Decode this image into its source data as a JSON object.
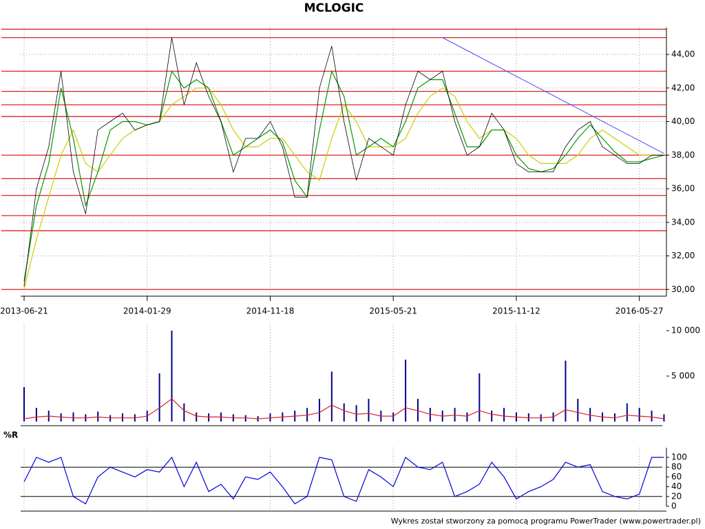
{
  "chart_data": [
    {
      "type": "line",
      "title": "MCLOGIC",
      "x": [
        0,
        1,
        2,
        3,
        4,
        5,
        6,
        7,
        8,
        9,
        10,
        11,
        12,
        13,
        14,
        15,
        16,
        17,
        18,
        19,
        20,
        21,
        22,
        23,
        24,
        25,
        26,
        27,
        28,
        29,
        30,
        31,
        32,
        33,
        34,
        35,
        36,
        37,
        38,
        39,
        40,
        41,
        42,
        43,
        44,
        45,
        46,
        47,
        48,
        49,
        50,
        51,
        52
      ],
      "xlim": [
        -0.28,
        52.2
      ],
      "xticks": [
        {
          "value": 0,
          "label": "2013-06-21"
        },
        {
          "value": 10,
          "label": "2014-01-29"
        },
        {
          "value": 20,
          "label": "2014-11-18"
        },
        {
          "value": 30,
          "label": "2015-05-21"
        },
        {
          "value": 40,
          "label": "2015-11-12"
        },
        {
          "value": 50,
          "label": "2016-05-27"
        }
      ],
      "ylim": [
        29.6,
        45.6
      ],
      "yticks": [
        {
          "value": 30,
          "label": "30,00"
        },
        {
          "value": 32,
          "label": "32,00"
        },
        {
          "value": 34,
          "label": "34,00"
        },
        {
          "value": 36,
          "label": "36,00"
        },
        {
          "value": 38,
          "label": "38,00"
        },
        {
          "value": 40,
          "label": "40,00"
        },
        {
          "value": 42,
          "label": "42,00"
        },
        {
          "value": 44,
          "label": "44,00"
        }
      ],
      "grid": true,
      "series": [
        {
          "color": "#000000",
          "values": [
            30.2,
            36,
            38.5,
            43,
            37,
            34.5,
            39.5,
            40,
            40.5,
            39.5,
            39.8,
            40,
            45,
            41,
            43.5,
            41.5,
            40,
            37,
            39,
            39,
            40,
            38.5,
            35.5,
            35.5,
            42,
            44.5,
            40,
            36.5,
            39,
            38.5,
            38,
            41,
            43,
            42.5,
            43,
            40,
            38,
            38.5,
            40.5,
            39.5,
            37.5,
            37,
            37,
            37,
            38.5,
            39.5,
            40,
            38.5,
            38,
            37.5,
            37.5,
            38,
            38
          ]
        },
        {
          "color": "#009900",
          "values": [
            30.5,
            35,
            37.5,
            42,
            39,
            35,
            37,
            39.5,
            40,
            40,
            39.8,
            40,
            43,
            42,
            42.5,
            42,
            40,
            38,
            38.5,
            39,
            39.5,
            38.8,
            36.5,
            35.5,
            39.5,
            43,
            41.5,
            38,
            38.5,
            39,
            38.5,
            40,
            42,
            42.5,
            42.5,
            40.5,
            38.5,
            38.5,
            39.5,
            39.5,
            38,
            37.2,
            37,
            37.2,
            38,
            39,
            39.8,
            39,
            38.2,
            37.6,
            37.6,
            37.8,
            38
          ]
        },
        {
          "color": "#cccc00",
          "values": [
            30,
            33,
            35.5,
            38,
            39.5,
            37.5,
            37,
            38,
            39,
            39.5,
            39.8,
            40,
            41,
            41.5,
            42,
            42,
            41,
            39.5,
            38.5,
            38.5,
            39,
            39,
            38,
            37,
            36.5,
            39,
            41,
            40,
            38.5,
            38.5,
            38.5,
            39,
            40.5,
            41.5,
            42,
            41.5,
            40,
            39,
            39.5,
            39.5,
            39,
            38,
            37.5,
            37.5,
            37.5,
            38,
            39,
            39.5,
            39,
            38.5,
            38,
            38,
            38
          ]
        }
      ],
      "hlines": [
        45.5,
        45,
        43,
        41.8,
        41,
        40.3,
        38,
        36.6,
        35.6,
        34.4,
        33.5,
        30
      ],
      "hline_color": "#e02020",
      "trendline": {
        "x": [
          34,
          52
        ],
        "y": [
          45,
          38.1
        ],
        "color": "#4a4aff"
      }
    },
    {
      "type": "bar",
      "ylim": [
        0,
        10000
      ],
      "yticks": [
        {
          "value": 5000,
          "label": "5 000"
        },
        {
          "value": 10000,
          "label": "10 000"
        }
      ],
      "series": [
        {
          "kind": "bar",
          "color": "#00008b",
          "values": [
            3800,
            1500,
            1200,
            900,
            1000,
            800,
            1100,
            700,
            900,
            800,
            1200,
            5300,
            10000,
            2000,
            1000,
            900,
            1000,
            800,
            700,
            600,
            900,
            1000,
            1200,
            1500,
            2500,
            5500,
            2000,
            1800,
            2500,
            1200,
            1000,
            6800,
            2500,
            1500,
            1200,
            1500,
            1000,
            5300,
            1200,
            1500,
            1000,
            900,
            800,
            1000,
            6700,
            2500,
            1500,
            1000,
            900,
            2000,
            1500,
            1200,
            800
          ]
        },
        {
          "kind": "line",
          "color": "#e02020",
          "values": [
            300,
            500,
            600,
            500,
            400,
            400,
            500,
            400,
            400,
            400,
            600,
            1500,
            2500,
            1200,
            600,
            500,
            500,
            400,
            400,
            300,
            400,
            500,
            600,
            700,
            1000,
            1800,
            1200,
            800,
            900,
            600,
            600,
            1500,
            1200,
            800,
            600,
            700,
            600,
            1200,
            800,
            600,
            500,
            400,
            400,
            500,
            1300,
            1000,
            700,
            500,
            400,
            700,
            600,
            500,
            300
          ]
        }
      ]
    },
    {
      "type": "line",
      "title": "%R",
      "ylim": [
        0,
        100
      ],
      "yticks": [
        0,
        20,
        40,
        60,
        80,
        100
      ],
      "reference_lines": [
        20,
        80
      ],
      "series": [
        {
          "color": "#0000dd",
          "values": [
            50,
            100,
            90,
            100,
            20,
            5,
            60,
            80,
            70,
            60,
            75,
            70,
            100,
            40,
            90,
            30,
            45,
            15,
            60,
            55,
            70,
            40,
            5,
            20,
            100,
            95,
            20,
            10,
            75,
            60,
            40,
            100,
            80,
            75,
            90,
            20,
            30,
            45,
            90,
            60,
            15,
            30,
            40,
            55,
            90,
            80,
            85,
            30,
            20,
            15,
            25,
            100,
            100
          ]
        }
      ]
    }
  ],
  "footer": "Wykres został stworzony za pomocą programu PowerTrader (www.powertrader.pl)"
}
